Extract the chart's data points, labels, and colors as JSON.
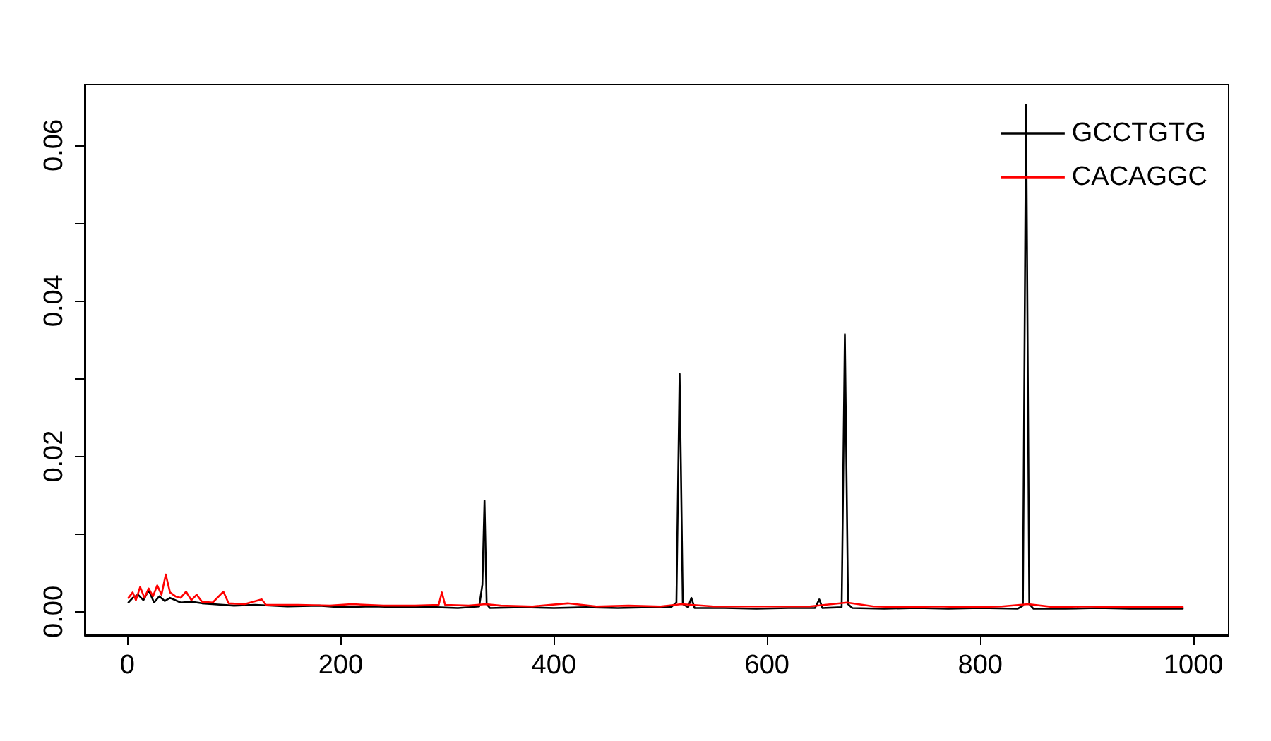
{
  "chart_data": {
    "type": "line",
    "xlim": [
      -40,
      1033
    ],
    "xticks": [
      0,
      200,
      400,
      600,
      800,
      1000
    ],
    "ylim": [
      -0.003,
      0.0678
    ],
    "yticks": [
      {
        "value": 0,
        "label": "0.00"
      },
      {
        "value": 0.01,
        "label": null
      },
      {
        "value": 0.02,
        "label": "0.02"
      },
      {
        "value": 0.03,
        "label": null
      },
      {
        "value": 0.04,
        "label": "0.04"
      },
      {
        "value": 0.05,
        "label": null
      },
      {
        "value": 0.06,
        "label": "0.06"
      }
    ],
    "grid": false,
    "legend": "top right",
    "marker": "none",
    "line_style": "solid",
    "series": [
      {
        "name": "GCCTGTG",
        "color": "#000000",
        "x": [
          1,
          5,
          10,
          15,
          20,
          25,
          30,
          35,
          40,
          50,
          60,
          70,
          80,
          100,
          120,
          150,
          180,
          200,
          230,
          260,
          290,
          310,
          330,
          333,
          335,
          337,
          340,
          370,
          400,
          430,
          460,
          490,
          510,
          515,
          518,
          521,
          526,
          529,
          532,
          560,
          590,
          620,
          645,
          649,
          652,
          670,
          673,
          676,
          680,
          710,
          740,
          770,
          800,
          835,
          840,
          843,
          846,
          850,
          880,
          910,
          940,
          970,
          990
        ],
        "values": [
          0.0012,
          0.0018,
          0.0022,
          0.0015,
          0.0028,
          0.0012,
          0.002,
          0.0014,
          0.0018,
          0.0012,
          0.0013,
          0.0011,
          0.001,
          0.0008,
          0.0009,
          0.0007,
          0.0008,
          0.0006,
          0.0007,
          0.0006,
          0.0006,
          0.0005,
          0.0007,
          0.0035,
          0.0143,
          0.001,
          0.0005,
          0.0006,
          0.0005,
          0.0006,
          0.0005,
          0.0006,
          0.0006,
          0.0012,
          0.0306,
          0.001,
          0.0006,
          0.0018,
          0.0005,
          0.0005,
          0.0004,
          0.0005,
          0.0005,
          0.0016,
          0.0005,
          0.0006,
          0.0357,
          0.001,
          0.0005,
          0.0004,
          0.0005,
          0.0004,
          0.0005,
          0.0004,
          0.0008,
          0.0652,
          0.001,
          0.0004,
          0.0004,
          0.0005,
          0.0004,
          0.0004,
          0.0004
        ]
      },
      {
        "name": "CACAGGC",
        "color": "#ff0000",
        "x": [
          1,
          5,
          8,
          12,
          16,
          20,
          24,
          28,
          32,
          36,
          40,
          45,
          50,
          55,
          60,
          65,
          70,
          80,
          90,
          95,
          110,
          126,
          130,
          160,
          190,
          210,
          240,
          270,
          292,
          295,
          298,
          320,
          336,
          350,
          380,
          413,
          440,
          470,
          500,
          520,
          550,
          580,
          610,
          640,
          675,
          700,
          730,
          760,
          790,
          820,
          845,
          870,
          900,
          930,
          960,
          990
        ],
        "values": [
          0.0018,
          0.0025,
          0.0015,
          0.0032,
          0.0018,
          0.003,
          0.002,
          0.0034,
          0.0022,
          0.0048,
          0.0025,
          0.002,
          0.0018,
          0.0026,
          0.0015,
          0.0022,
          0.0013,
          0.0012,
          0.0026,
          0.0011,
          0.001,
          0.0016,
          0.0009,
          0.0009,
          0.0008,
          0.001,
          0.0008,
          0.0008,
          0.0009,
          0.0025,
          0.0009,
          0.0008,
          0.001,
          0.0008,
          0.0007,
          0.0011,
          0.0007,
          0.0008,
          0.0007,
          0.001,
          0.0007,
          0.0007,
          0.0007,
          0.0007,
          0.0012,
          0.0007,
          0.0006,
          0.0007,
          0.0006,
          0.0007,
          0.001,
          0.0006,
          0.0007,
          0.0006,
          0.0006,
          0.0006
        ]
      }
    ]
  }
}
